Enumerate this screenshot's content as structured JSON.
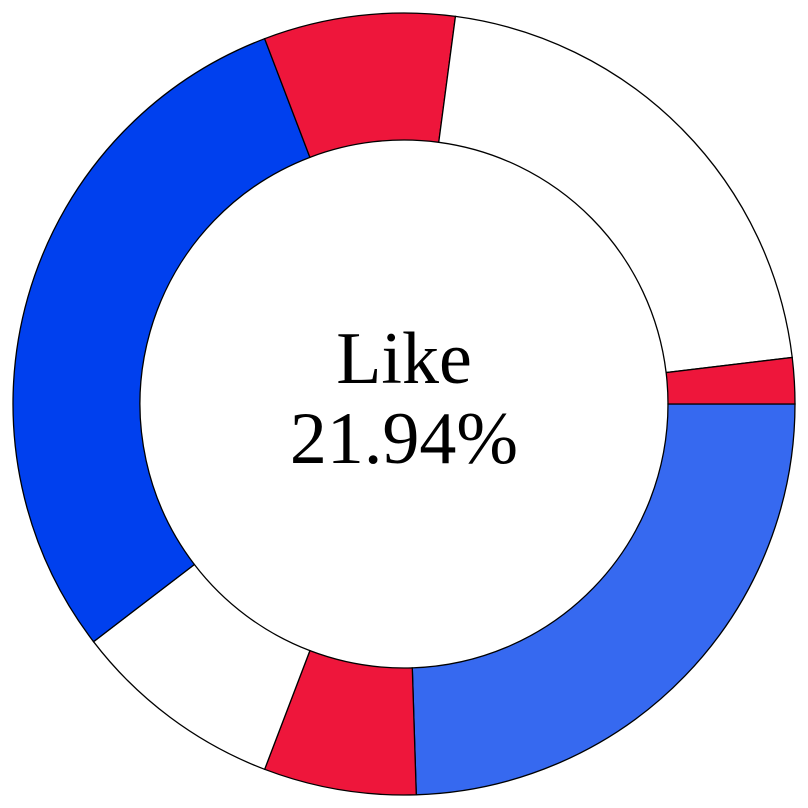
{
  "chart_data": {
    "type": "pie",
    "variant": "donut",
    "center_label": {
      "name": "Like",
      "value": "21.94%"
    },
    "slices": [
      {
        "value": 24.5,
        "color": "#3669F0"
      },
      {
        "value": 6.3,
        "color": "#EE163B"
      },
      {
        "value": 8.8,
        "color": "#FFFFFF"
      },
      {
        "value": 29.6,
        "color": "#0040EE"
      },
      {
        "value": 7.9,
        "color": "#EE163B"
      },
      {
        "value": 21.0,
        "color": "#FFFFFF"
      },
      {
        "value": 1.9,
        "color": "#EE163B"
      }
    ],
    "start_angle_deg": 0,
    "direction": "clockwise",
    "stroke_color": "#000000"
  }
}
